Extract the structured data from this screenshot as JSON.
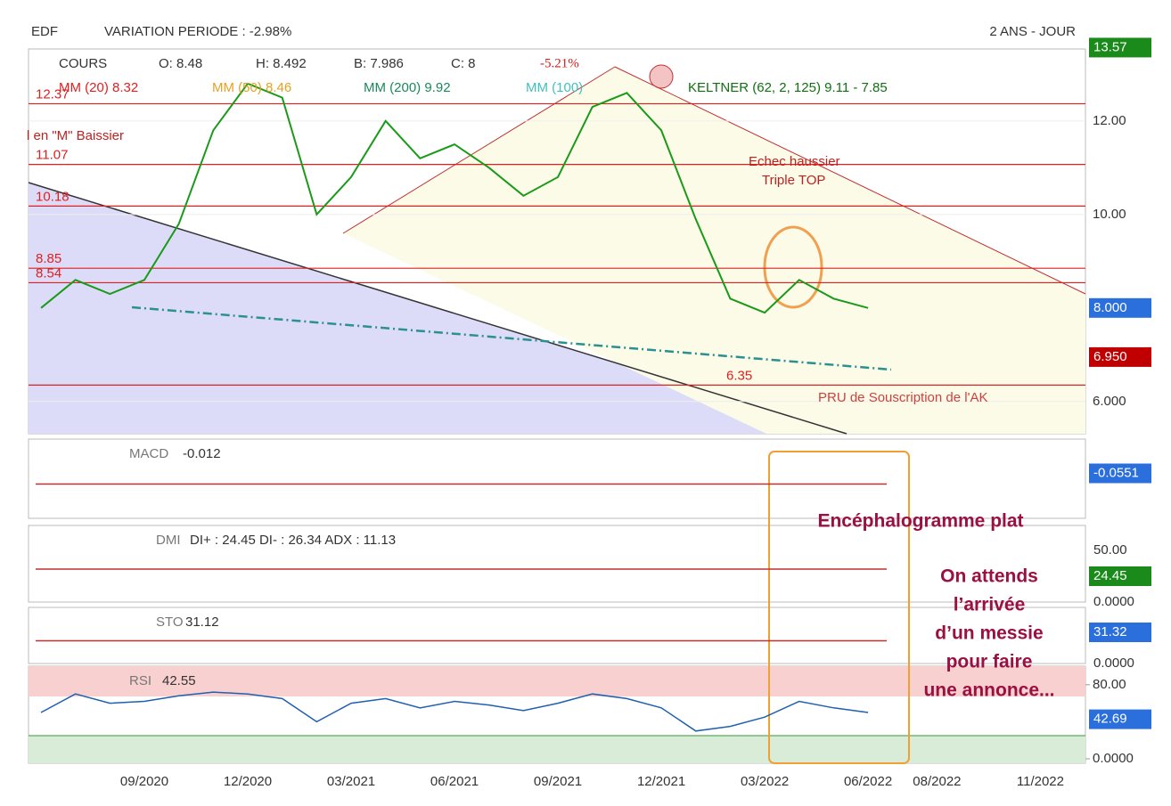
{
  "header": {
    "symbol": "EDF",
    "variation": "VARIATION PERIODE : -2.98%",
    "period": "2 ANS - JOUR"
  },
  "chart_data": {
    "type": "line",
    "legend": [
      "O: 8.48",
      "H: 8.492",
      "B: 7.986",
      "C: 8",
      "-5.21%"
    ],
    "indicators": [
      {
        "name": "MM (20) 8.32",
        "color": "#e02020"
      },
      {
        "name": "MM (50) 8.46",
        "color": "#e8a020"
      },
      {
        "name": "MM (200) 9.92",
        "color": "#1a8a5a"
      },
      {
        "name": "MM (100)",
        "color": "#40c0c0"
      },
      {
        "name": "KELTNER (62, 2, 125) 9.11 - 7.85",
        "color": "#107010"
      }
    ],
    "x": [
      "06/2020",
      "07/2020",
      "08/2020",
      "09/2020",
      "10/2020",
      "11/2020",
      "12/2020",
      "01/2021",
      "02/2021",
      "03/2021",
      "04/2021",
      "05/2021",
      "06/2021",
      "07/2021",
      "08/2021",
      "09/2021",
      "10/2021",
      "11/2021",
      "12/2021",
      "01/2022",
      "02/2022",
      "03/2022",
      "04/2022",
      "05/2022",
      "06/2022"
    ],
    "series": [
      {
        "name": "COURS",
        "color": "#1a9a1a",
        "values": [
          8.0,
          8.6,
          8.3,
          8.6,
          9.8,
          11.8,
          12.8,
          12.5,
          10.0,
          10.8,
          12.0,
          11.2,
          11.5,
          11.0,
          10.4,
          10.8,
          12.3,
          12.6,
          11.8,
          9.9,
          8.2,
          7.9,
          8.6,
          8.2,
          8.0
        ]
      }
    ],
    "ylim": [
      5.31,
      13.54
    ],
    "yticks": [
      {
        "value": 12,
        "label": "12.00"
      },
      {
        "value": 10,
        "label": "10.00"
      },
      {
        "value": 6,
        "label": "6.000"
      }
    ],
    "xticks": [
      "09/2020",
      "12/2020",
      "03/2021",
      "06/2021",
      "09/2021",
      "12/2021",
      "03/2022",
      "06/2022",
      "08/2022",
      "11/2022"
    ],
    "levels": [
      12.37,
      11.07,
      10.18,
      8.85,
      8.54,
      6.35
    ],
    "level_color": "#e02020",
    "annotations": [
      "l en \"M\" Baissier",
      "Echec haussier",
      "Triple TOP",
      "PRU de Souscription de l'AK"
    ],
    "price_tags": [
      {
        "value": 13.57,
        "label": "13.57",
        "color": "#1a8a1a"
      },
      {
        "value": 8,
        "label": "8.000",
        "color": "#2a6fdb"
      },
      {
        "value": 6.95,
        "label": "6.950",
        "color": "#c00000"
      }
    ]
  },
  "panels": [
    {
      "label": "MACD",
      "reading": "-0.012",
      "tags": [
        "-0.0551"
      ]
    },
    {
      "label": "DMI",
      "reading": "DI+ : 24.45 DI- : 26.34 ADX : 11.13",
      "tags": [
        "50.00",
        "24.45",
        "0.0000"
      ]
    },
    {
      "label": "STO",
      "reading": "31.12",
      "tags": [
        "31.32",
        "0.0000"
      ]
    }
  ],
  "rsi": {
    "label": "RSI",
    "reading": "42.55",
    "color": "#2060b0",
    "ylim": [
      0,
      100
    ],
    "yticks": [
      {
        "value": 80,
        "label": "80.00"
      },
      {
        "value": 0,
        "label": "0.0000"
      }
    ],
    "last": {
      "value": 42.69,
      "label": "42.69"
    },
    "values": [
      50,
      70,
      60,
      62,
      68,
      72,
      70,
      65,
      40,
      60,
      65,
      55,
      62,
      58,
      52,
      60,
      70,
      65,
      55,
      30,
      35,
      45,
      62,
      55,
      50
    ]
  },
  "notes": {
    "flat": "Encéphalogramme plat",
    "lines": [
      "On attends",
      "l’arrivée",
      "d’un messie",
      "pour faire",
      "une annonce..."
    ]
  }
}
